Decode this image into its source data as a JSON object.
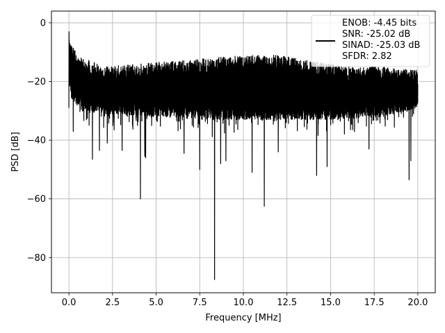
{
  "colors": {
    "background": "#ffffff",
    "series": "#000000",
    "grid": "#b0b0b0",
    "axes": "#000000",
    "legend_bg": "#ffffff",
    "legend_border": "#cccccc"
  },
  "chart_data": {
    "type": "line",
    "title": "",
    "xlabel": "Frequency [MHz]",
    "ylabel": "PSD [dB]",
    "xlim": [
      -1.0,
      21.0
    ],
    "ylim": [
      -92.0,
      4.0
    ],
    "xticks": [
      0.0,
      2.5,
      5.0,
      7.5,
      10.0,
      12.5,
      15.0,
      17.5,
      20.0
    ],
    "xtick_labels": [
      "0.0",
      "2.5",
      "5.0",
      "7.5",
      "10.0",
      "12.5",
      "15.0",
      "17.5",
      "20.0"
    ],
    "yticks": [
      0,
      -20,
      -40,
      -60,
      -80
    ],
    "ytick_labels": [
      "0",
      "−20",
      "−40",
      "−60",
      "−80"
    ],
    "grid": true,
    "legend": {
      "position": "top-right",
      "entries": [
        "ENOB: -4.45 bits",
        "SNR: -25.02 dB",
        "SINAD: -25.03 dB",
        "SFDR: 2.82"
      ]
    },
    "series": [
      {
        "band_x_range": [
          0.0,
          20.0
        ],
        "band_top": [
          [
            0.0,
            -3
          ],
          [
            0.5,
            -8
          ],
          [
            2.0,
            -12
          ],
          [
            4.0,
            -11
          ],
          [
            6.0,
            -10
          ],
          [
            8.0,
            -9
          ],
          [
            10.0,
            -8
          ],
          [
            12.0,
            -8
          ],
          [
            14.0,
            -10
          ],
          [
            16.0,
            -12
          ],
          [
            18.0,
            -12
          ],
          [
            20.0,
            -13
          ]
        ],
        "band_bottom": [
          [
            0.0,
            -28
          ],
          [
            0.5,
            -33
          ],
          [
            2.0,
            -35
          ],
          [
            5.0,
            -36
          ],
          [
            8.0,
            -37
          ],
          [
            10.0,
            -37
          ],
          [
            12.0,
            -37
          ],
          [
            15.0,
            -37
          ],
          [
            18.0,
            -36
          ],
          [
            20.0,
            -33
          ]
        ],
        "deep_dips": [
          [
            0.0,
            -29
          ],
          [
            0.25,
            -37
          ],
          [
            1.35,
            -46.5
          ],
          [
            1.75,
            -43.5
          ],
          [
            2.2,
            -41
          ],
          [
            3.05,
            -43.5
          ],
          [
            4.1,
            -60
          ],
          [
            4.35,
            -45.5
          ],
          [
            4.4,
            -46
          ],
          [
            6.6,
            -44.5
          ],
          [
            7.5,
            -50
          ],
          [
            8.35,
            -87.5
          ],
          [
            8.7,
            -48
          ],
          [
            9.0,
            -47
          ],
          [
            10.5,
            -51
          ],
          [
            11.2,
            -62.5
          ],
          [
            12.0,
            -44
          ],
          [
            14.2,
            -52
          ],
          [
            14.8,
            -49
          ],
          [
            17.2,
            -43
          ],
          [
            19.5,
            -53.5
          ],
          [
            19.6,
            -47
          ]
        ]
      }
    ]
  }
}
